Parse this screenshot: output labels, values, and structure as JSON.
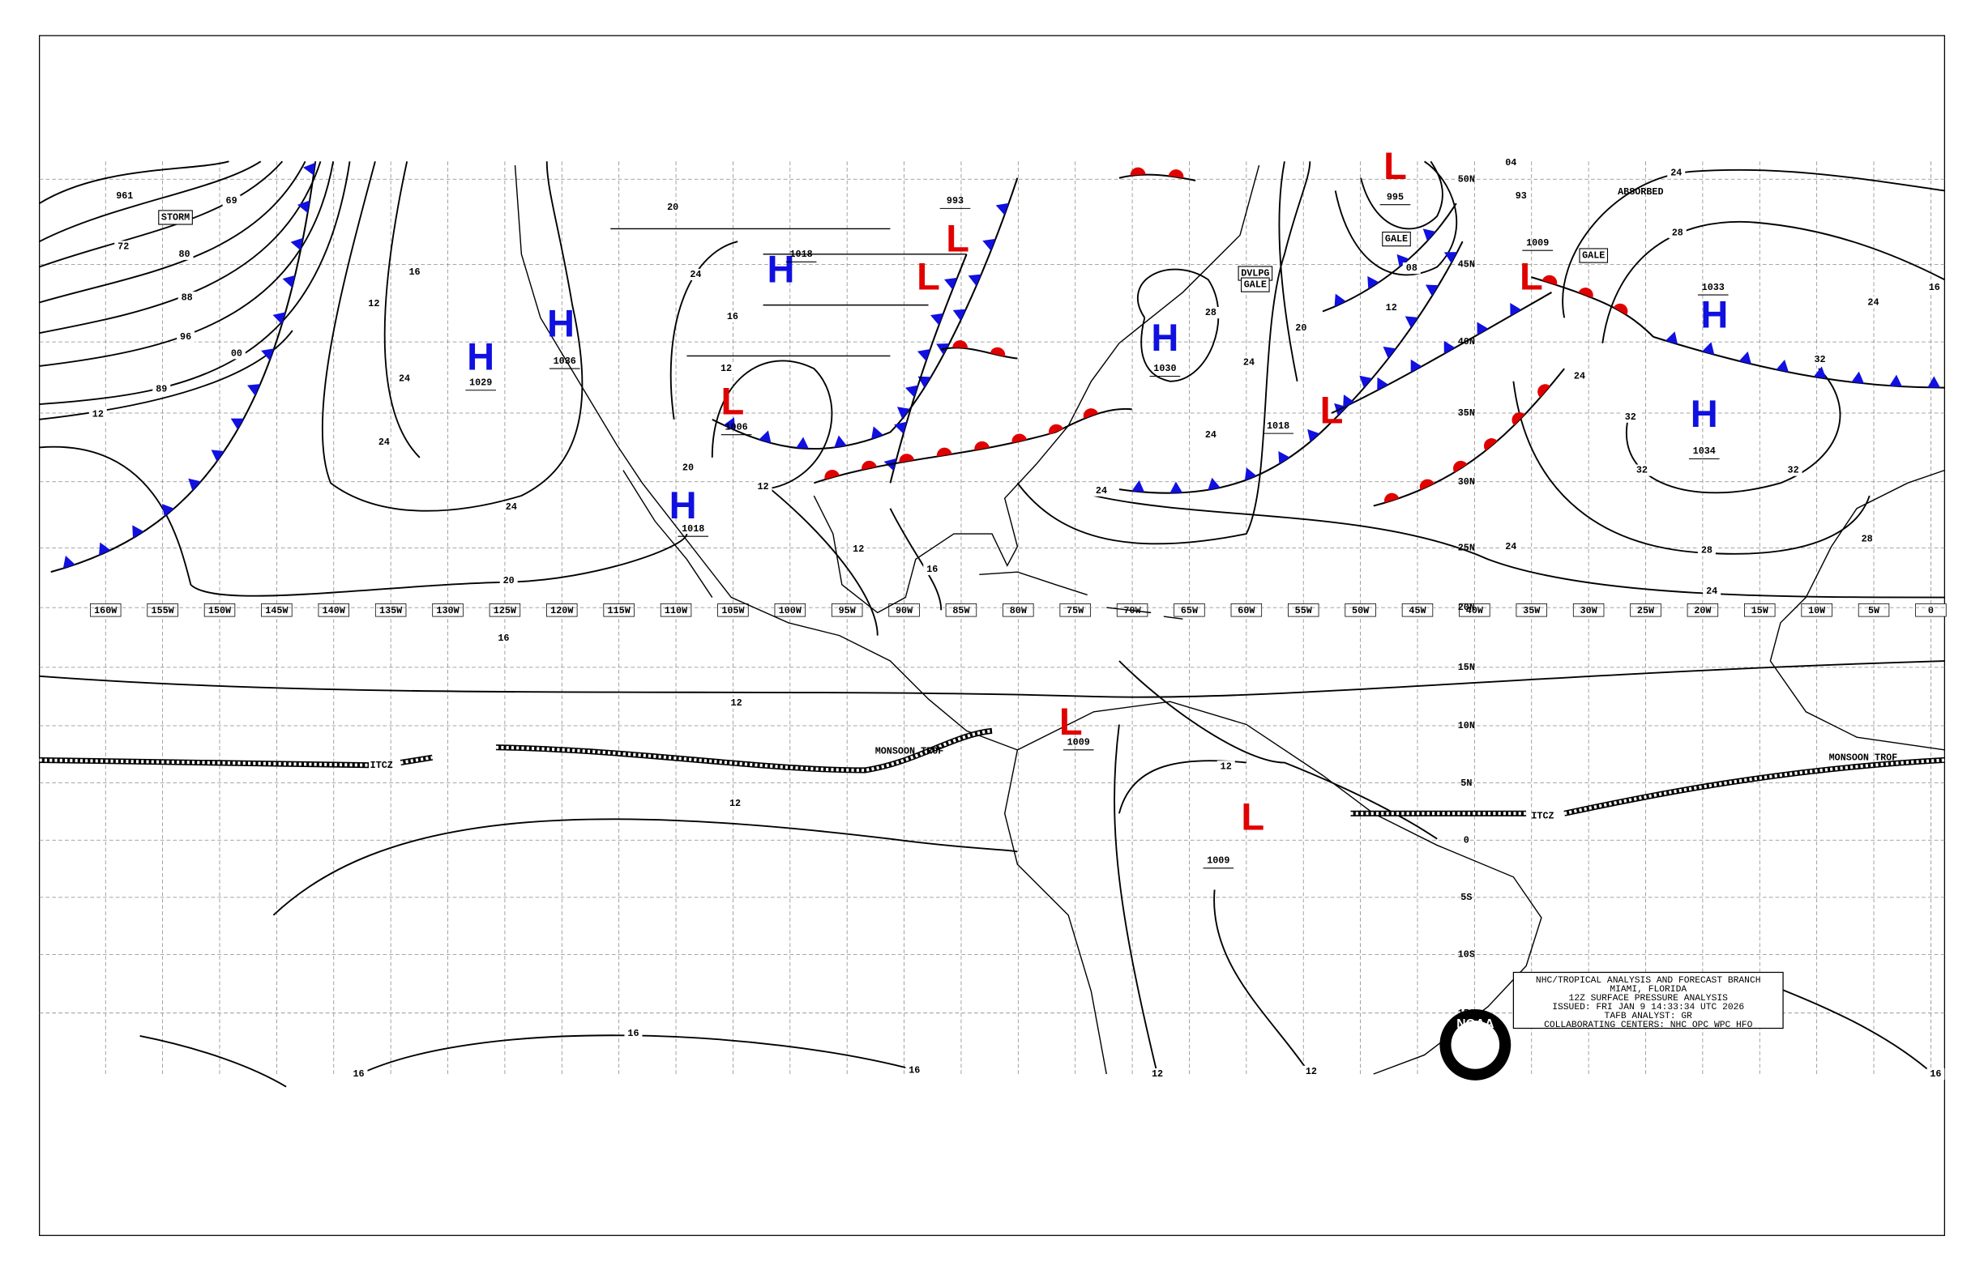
{
  "map": {
    "longitude_labels": [
      "160W",
      "155W",
      "150W",
      "145W",
      "140W",
      "135W",
      "130W",
      "125W",
      "120W",
      "115W",
      "110W",
      "105W",
      "100W",
      "95W",
      "90W",
      "85W",
      "80W",
      "75W",
      "70W",
      "65W",
      "60W",
      "55W",
      "50W",
      "45W",
      "40W",
      "35W",
      "30W",
      "25W",
      "20W",
      "15W",
      "10W",
      "5W",
      "0"
    ],
    "latitude_labels": [
      "50N",
      "45N",
      "40N",
      "35N",
      "30N",
      "25N",
      "20N",
      "15N",
      "10N",
      "5N",
      "0",
      "5S",
      "10S",
      "15S"
    ],
    "pressure_centers": [
      {
        "symbol": "H",
        "pressure": "1029"
      },
      {
        "symbol": "H",
        "pressure": "1036"
      },
      {
        "symbol": "H",
        "pressure": "1018"
      },
      {
        "symbol": "H",
        "pressure": "1018"
      },
      {
        "symbol": "H",
        "pressure": "1030"
      },
      {
        "symbol": "H",
        "pressure": "1033"
      },
      {
        "symbol": "H",
        "pressure": "1034"
      },
      {
        "symbol": "L",
        "pressure": "1006"
      },
      {
        "symbol": "L",
        "pressure": "1018"
      },
      {
        "symbol": "L",
        "pressure": "1009"
      },
      {
        "symbol": "L",
        "pressure": "1009"
      },
      {
        "symbol": "L",
        "pressure": "995"
      },
      {
        "symbol": "L",
        "pressure": "993"
      },
      {
        "symbol": "L",
        "pressure": "1009"
      },
      {
        "symbol": "L"
      }
    ],
    "isobar_labels": [
      "961",
      "69",
      "72",
      "80",
      "88",
      "96",
      "00",
      "89",
      "12",
      "16",
      "12",
      "24",
      "24",
      "24",
      "20",
      "16",
      "12",
      "12",
      "16",
      "16",
      "16",
      "12",
      "12",
      "16",
      "24",
      "24",
      "20",
      "24",
      "08",
      "12",
      "04",
      "93",
      "24",
      "28",
      "32",
      "32",
      "32",
      "32",
      "28",
      "24",
      "28",
      "24",
      "16",
      "12",
      "12",
      "20",
      "28",
      "16",
      "24",
      "24",
      "12",
      "20",
      "24",
      "16",
      "12"
    ],
    "feature_labels": [
      "STORM",
      "GALE",
      "GALE",
      "DVLPG",
      "GALE",
      "ABSORBED",
      "ITCZ",
      "ITCZ",
      "MONSOON TROF",
      "MONSOON TROF"
    ],
    "info_box": [
      "NHC/TROPICAL ANALYSIS AND FORECAST BRANCH",
      "MIAMI, FLORIDA",
      "12Z SURFACE PRESSURE ANALYSIS",
      "ISSUED: FRI JAN 9 14:33:34 UTC 2026",
      "TAFB ANALYST: GR",
      "COLLABORATING CENTERS: NHC OPC WPC HFO"
    ],
    "logo": "NOAA"
  }
}
